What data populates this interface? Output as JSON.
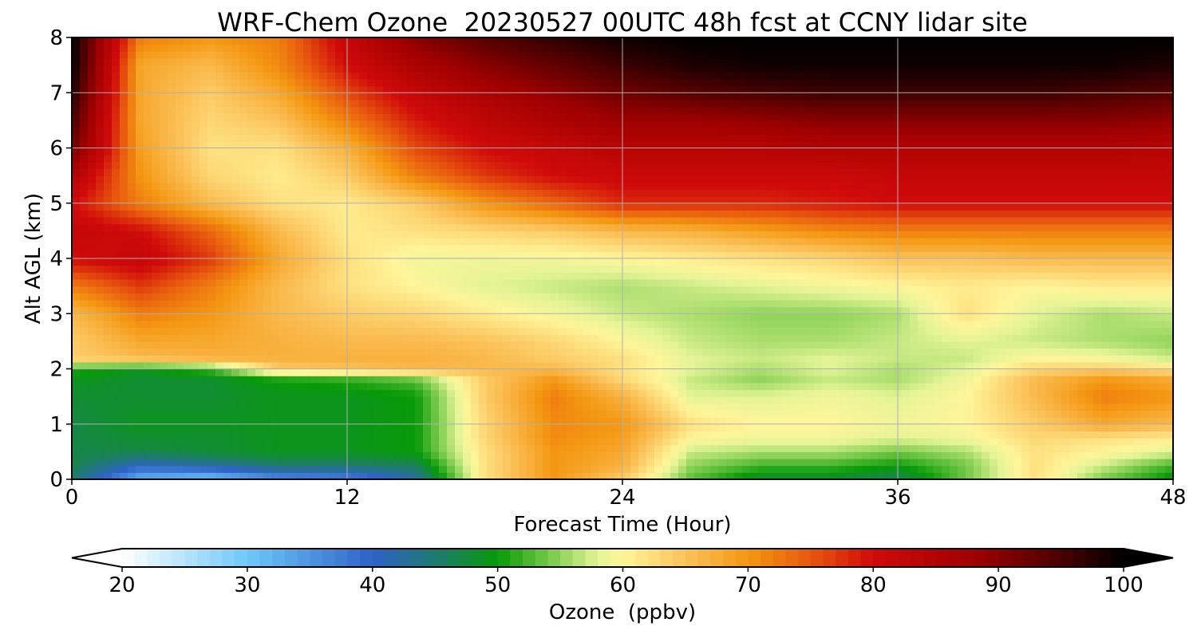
{
  "chart_data": {
    "type": "heatmap",
    "title": "WRF-Chem Ozone  20230527 00UTC 48h fcst at CCNY lidar site",
    "xlabel": "Forecast Time (Hour)",
    "ylabel": "Alt AGL (km)",
    "xlim": [
      0,
      48
    ],
    "ylim": [
      0,
      8
    ],
    "x_ticks": [
      0,
      12,
      24,
      36,
      48
    ],
    "y_ticks": [
      0,
      1,
      2,
      3,
      4,
      5,
      6,
      7,
      8
    ],
    "grid": true,
    "x_hours": [
      0,
      3,
      6,
      9,
      12,
      15,
      18,
      21,
      24,
      27,
      30,
      33,
      36,
      39,
      42,
      45,
      48
    ],
    "alt_km": [
      0,
      0.25,
      0.5,
      0.75,
      1.0,
      1.5,
      1.8,
      2.0,
      2.2,
      2.5,
      3.0,
      3.5,
      4.0,
      4.5,
      5.0,
      5.5,
      6.0,
      6.5,
      7.0,
      7.5,
      8.0
    ],
    "ozone_ppbv": [
      [
        45,
        32,
        30,
        35,
        36,
        42,
        62,
        70,
        64,
        53,
        48,
        48,
        46,
        54,
        62,
        54,
        49
      ],
      [
        47,
        40,
        42,
        45,
        45,
        46,
        62,
        70,
        67,
        55,
        52,
        52,
        50,
        54,
        62,
        57,
        52
      ],
      [
        47,
        47,
        48,
        49,
        49,
        50,
        62,
        70,
        68,
        57,
        56,
        56,
        54,
        56,
        62,
        60,
        58
      ],
      [
        47,
        48,
        48,
        49,
        49,
        50,
        63,
        71,
        69,
        60,
        59,
        59,
        58,
        59,
        63,
        62,
        61
      ],
      [
        47,
        49,
        49,
        49,
        49,
        50,
        63,
        71,
        70,
        62,
        60,
        60,
        59,
        60,
        64,
        68,
        66
      ],
      [
        48,
        48,
        48,
        49,
        49,
        50,
        64,
        72,
        67,
        58,
        58,
        59,
        58,
        60,
        66,
        72,
        70
      ],
      [
        49,
        48,
        48,
        50,
        51,
        53,
        64,
        70,
        63,
        57,
        55,
        57,
        56,
        59,
        66,
        70,
        68
      ],
      [
        51,
        49,
        52,
        64,
        65,
        66,
        66,
        66,
        62,
        58,
        56,
        58,
        56,
        58,
        63,
        64,
        62
      ],
      [
        64,
        66,
        67,
        67,
        67,
        67,
        66,
        64,
        62,
        58,
        57,
        58,
        57,
        57,
        60,
        59,
        57
      ],
      [
        64,
        68,
        68,
        67,
        66,
        66,
        65,
        63,
        60,
        57,
        56,
        56,
        57,
        58,
        57,
        56,
        55
      ],
      [
        66,
        72,
        70,
        66,
        64,
        63,
        61,
        59,
        57,
        56,
        55,
        55,
        56,
        62,
        58,
        56,
        57
      ],
      [
        72,
        77,
        72,
        66,
        62,
        60,
        58,
        57,
        56,
        57,
        58,
        59,
        60,
        61,
        60,
        61,
        61
      ],
      [
        80,
        82,
        77,
        68,
        62,
        59,
        59,
        59,
        60,
        61,
        62,
        63,
        65,
        65,
        66,
        66,
        66
      ],
      [
        82,
        80,
        74,
        66,
        61,
        62,
        63,
        64,
        66,
        67,
        69,
        71,
        72,
        72,
        72,
        72,
        72
      ],
      [
        80,
        72,
        66,
        62,
        61,
        64,
        70,
        74,
        78,
        78,
        78,
        79,
        80,
        80,
        80,
        80,
        80
      ],
      [
        85,
        70,
        63,
        61,
        64,
        72,
        77,
        80,
        81,
        81,
        81,
        81,
        82,
        82,
        82,
        82,
        82
      ],
      [
        92,
        69,
        62,
        62,
        67,
        76,
        80,
        82,
        84,
        84,
        84,
        85,
        85,
        85,
        85,
        85,
        84
      ],
      [
        95,
        68,
        63,
        65,
        72,
        79,
        83,
        86,
        88,
        88,
        89,
        90,
        90,
        90,
        90,
        90,
        89
      ],
      [
        98,
        68,
        64,
        68,
        76,
        82,
        86,
        89,
        92,
        94,
        95,
        96,
        96,
        96,
        96,
        95,
        94
      ],
      [
        100,
        68,
        66,
        71,
        80,
        86,
        90,
        93,
        96,
        98,
        99,
        99,
        99,
        99,
        99,
        99,
        98
      ],
      [
        100,
        72,
        70,
        72,
        82,
        90,
        94,
        97,
        99,
        100,
        100,
        100,
        100,
        100,
        100,
        100,
        100
      ]
    ],
    "colorbar": {
      "label": "Ozone  (ppbv)",
      "min": 20,
      "max": 100,
      "ticks": [
        20,
        30,
        40,
        50,
        60,
        70,
        80,
        90,
        100
      ],
      "extend": "both",
      "colors": [
        {
          "v": 20,
          "c": "#ffffff"
        },
        {
          "v": 30,
          "c": "#6ec8f8"
        },
        {
          "v": 40,
          "c": "#2f62c8"
        },
        {
          "v": 45,
          "c": "#1f7a70"
        },
        {
          "v": 50,
          "c": "#079a07"
        },
        {
          "v": 55,
          "c": "#8fd35a"
        },
        {
          "v": 58,
          "c": "#e4f496"
        },
        {
          "v": 60,
          "c": "#fff59a"
        },
        {
          "v": 65,
          "c": "#fbc25a"
        },
        {
          "v": 70,
          "c": "#f49712"
        },
        {
          "v": 75,
          "c": "#e8580e"
        },
        {
          "v": 80,
          "c": "#d00a0a"
        },
        {
          "v": 88,
          "c": "#a00000"
        },
        {
          "v": 95,
          "c": "#4a0000"
        },
        {
          "v": 100,
          "c": "#000000"
        }
      ]
    }
  }
}
